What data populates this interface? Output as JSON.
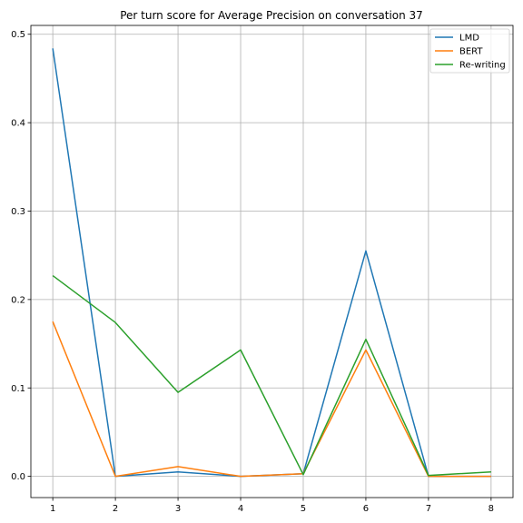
{
  "chart_data": {
    "type": "line",
    "title": "Per turn score for Average Precision on conversation 37",
    "xlabel": "",
    "ylabel": "",
    "x": [
      1,
      2,
      3,
      4,
      5,
      6,
      7,
      8
    ],
    "xlim": [
      0.65,
      8.35
    ],
    "ylim": [
      -0.024,
      0.51
    ],
    "xticks": [
      "1",
      "2",
      "3",
      "4",
      "5",
      "6",
      "7",
      "8"
    ],
    "yticks": [
      "0.0",
      "0.1",
      "0.2",
      "0.3",
      "0.4",
      "0.5"
    ],
    "grid": true,
    "legend_position": "top-right",
    "series": [
      {
        "name": "LMD",
        "color": "#1f77b4",
        "values": [
          0.484,
          0.0,
          0.005,
          0.0,
          0.003,
          0.255,
          0.0,
          0.0
        ]
      },
      {
        "name": "BERT",
        "color": "#ff7f0e",
        "values": [
          0.175,
          0.0,
          0.011,
          0.0,
          0.003,
          0.143,
          0.0,
          0.0
        ]
      },
      {
        "name": "Re-writing",
        "color": "#2ca02c",
        "values": [
          0.227,
          0.174,
          0.095,
          0.143,
          0.002,
          0.155,
          0.001,
          0.005
        ]
      }
    ]
  }
}
